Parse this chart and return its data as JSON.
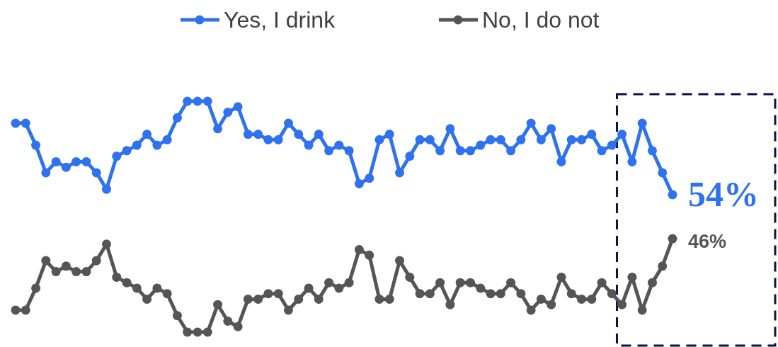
{
  "chart_data": {
    "type": "line",
    "categories": [
      null,
      null,
      null,
      null,
      null,
      null,
      null,
      null,
      null,
      null,
      null,
      null,
      null,
      null,
      null,
      null,
      null,
      null,
      null,
      null,
      null,
      null,
      null,
      null,
      null,
      null,
      null,
      null,
      null,
      null,
      null,
      null,
      null,
      null,
      null,
      null,
      null,
      null,
      null,
      null,
      null,
      null,
      null,
      null,
      null,
      null,
      null,
      null,
      null,
      null,
      null,
      null,
      null,
      null,
      null,
      null,
      null,
      null,
      null,
      null,
      null,
      null,
      null,
      null,
      null,
      null
    ],
    "series": [
      {
        "name": "Yes, I drink",
        "color": "#2f72f0",
        "values": [
          67,
          67,
          63,
          58,
          60,
          59,
          60,
          60,
          58,
          55,
          61,
          62,
          63,
          65,
          63,
          64,
          68,
          71,
          71,
          71,
          66,
          69,
          70,
          65,
          65,
          64,
          64,
          67,
          65,
          63,
          65,
          62,
          63,
          62,
          56,
          57,
          64,
          65,
          58,
          61,
          64,
          64,
          62,
          66,
          62,
          62,
          63,
          64,
          64,
          62,
          64,
          67,
          64,
          66,
          60,
          64,
          64,
          65,
          62,
          63,
          65,
          60,
          67,
          62,
          58,
          54
        ],
        "value_labels": [
          null,
          null,
          null,
          null,
          null,
          null,
          null,
          null,
          null,
          null,
          null,
          null,
          null,
          null,
          null,
          null,
          null,
          null,
          null,
          null,
          null,
          null,
          null,
          null,
          null,
          null,
          null,
          null,
          null,
          null,
          null,
          null,
          null,
          null,
          null,
          null,
          null,
          null,
          null,
          null,
          null,
          null,
          null,
          null,
          null,
          null,
          null,
          null,
          null,
          null,
          null,
          null,
          null,
          null,
          null,
          null,
          null,
          null,
          null,
          null,
          null,
          null,
          null,
          null,
          null,
          "54%"
        ]
      },
      {
        "name": "No, I do not",
        "color": "#555555",
        "values": [
          33,
          33,
          37,
          42,
          40,
          41,
          40,
          40,
          42,
          45,
          39,
          38,
          37,
          35,
          37,
          36,
          32,
          29,
          29,
          29,
          34,
          31,
          30,
          35,
          35,
          36,
          36,
          33,
          35,
          37,
          35,
          38,
          37,
          38,
          44,
          43,
          35,
          35,
          42,
          39,
          36,
          36,
          38,
          34,
          38,
          38,
          37,
          36,
          36,
          38,
          36,
          33,
          35,
          34,
          39,
          36,
          35,
          35,
          38,
          36,
          34,
          39,
          33,
          38,
          41,
          46
        ],
        "value_labels": [
          null,
          null,
          null,
          null,
          null,
          null,
          null,
          null,
          null,
          null,
          null,
          null,
          null,
          null,
          null,
          null,
          null,
          null,
          null,
          null,
          null,
          null,
          null,
          null,
          null,
          null,
          null,
          null,
          null,
          null,
          null,
          null,
          null,
          null,
          null,
          null,
          null,
          null,
          null,
          null,
          null,
          null,
          null,
          null,
          null,
          null,
          null,
          null,
          null,
          null,
          null,
          null,
          null,
          null,
          null,
          null,
          null,
          null,
          null,
          null,
          null,
          null,
          null,
          null,
          null,
          "46%"
        ]
      }
    ],
    "legend": "top",
    "marker": "circle",
    "grid": false,
    "line_style": "solid"
  }
}
